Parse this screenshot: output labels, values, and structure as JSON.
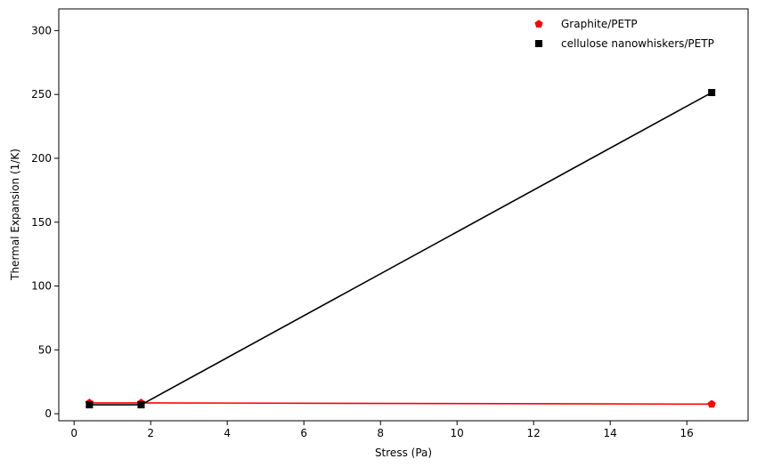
{
  "chart_data": {
    "type": "line",
    "title": "",
    "xlabel": "Stress (Pa)",
    "ylabel": "Thermal Expansion (1/K)",
    "xlim": [
      -0.4,
      17.6
    ],
    "ylim": [
      -5.5,
      317.0
    ],
    "x_ticks": [
      0,
      2,
      4,
      6,
      8,
      10,
      12,
      14,
      16
    ],
    "y_ticks": [
      0,
      50,
      100,
      150,
      200,
      250,
      300
    ],
    "grid": false,
    "legend_position": "top-right",
    "series": [
      {
        "name": "Graphite/PETP",
        "color": "#ff0000",
        "marker": "pentagon",
        "x": [
          0.4,
          1.75,
          16.65
        ],
        "y": [
          8.5,
          8.5,
          7.5
        ]
      },
      {
        "name": "cellulose nanowhiskers/PETP",
        "color": "#000000",
        "marker": "square",
        "x": [
          0.4,
          1.75,
          16.65
        ],
        "y": [
          7.0,
          7.0,
          251.5
        ]
      }
    ]
  }
}
